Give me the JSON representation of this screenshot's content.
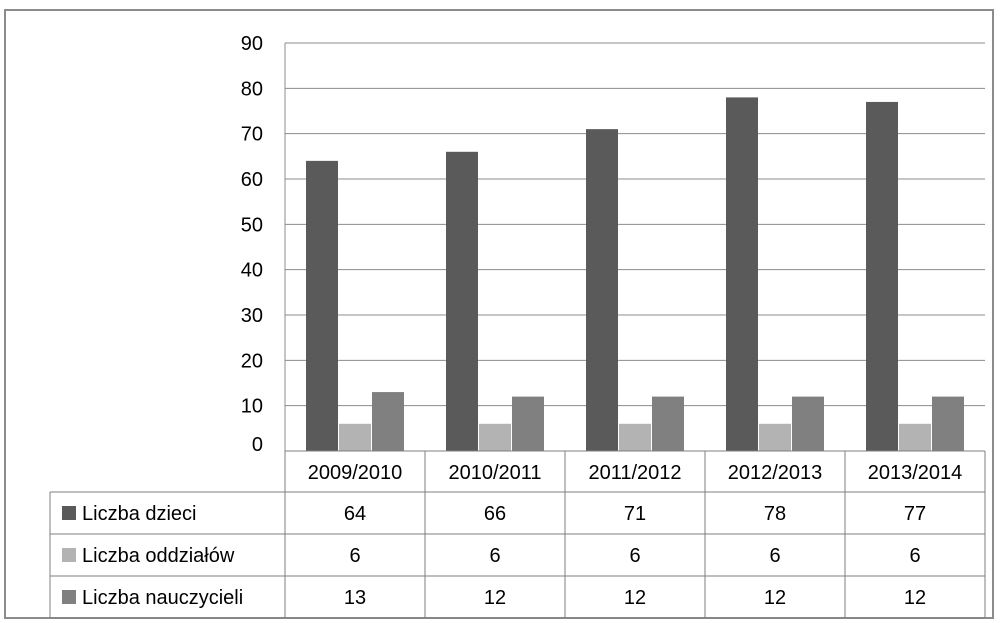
{
  "chart_data": {
    "type": "bar",
    "categories": [
      "2009/2010",
      "2010/2011",
      "2011/2012",
      "2012/2013",
      "2013/2014"
    ],
    "series": [
      {
        "name": "Liczba dzieci",
        "values": [
          64,
          66,
          71,
          78,
          77
        ],
        "color": "#5a5a5a"
      },
      {
        "name": "Liczba oddziałów",
        "values": [
          6,
          6,
          6,
          6,
          6
        ],
        "color": "#b3b3b3"
      },
      {
        "name": "Liczba nauczycieli",
        "values": [
          13,
          12,
          12,
          12,
          12
        ],
        "color": "#808080"
      }
    ],
    "yticks": [
      "0",
      "10",
      "20",
      "30",
      "40",
      "50",
      "60",
      "70",
      "80",
      "90"
    ],
    "ylim": [
      0,
      90
    ],
    "grid": true,
    "legend": "data-table",
    "title": "",
    "xlabel": "",
    "ylabel": ""
  }
}
